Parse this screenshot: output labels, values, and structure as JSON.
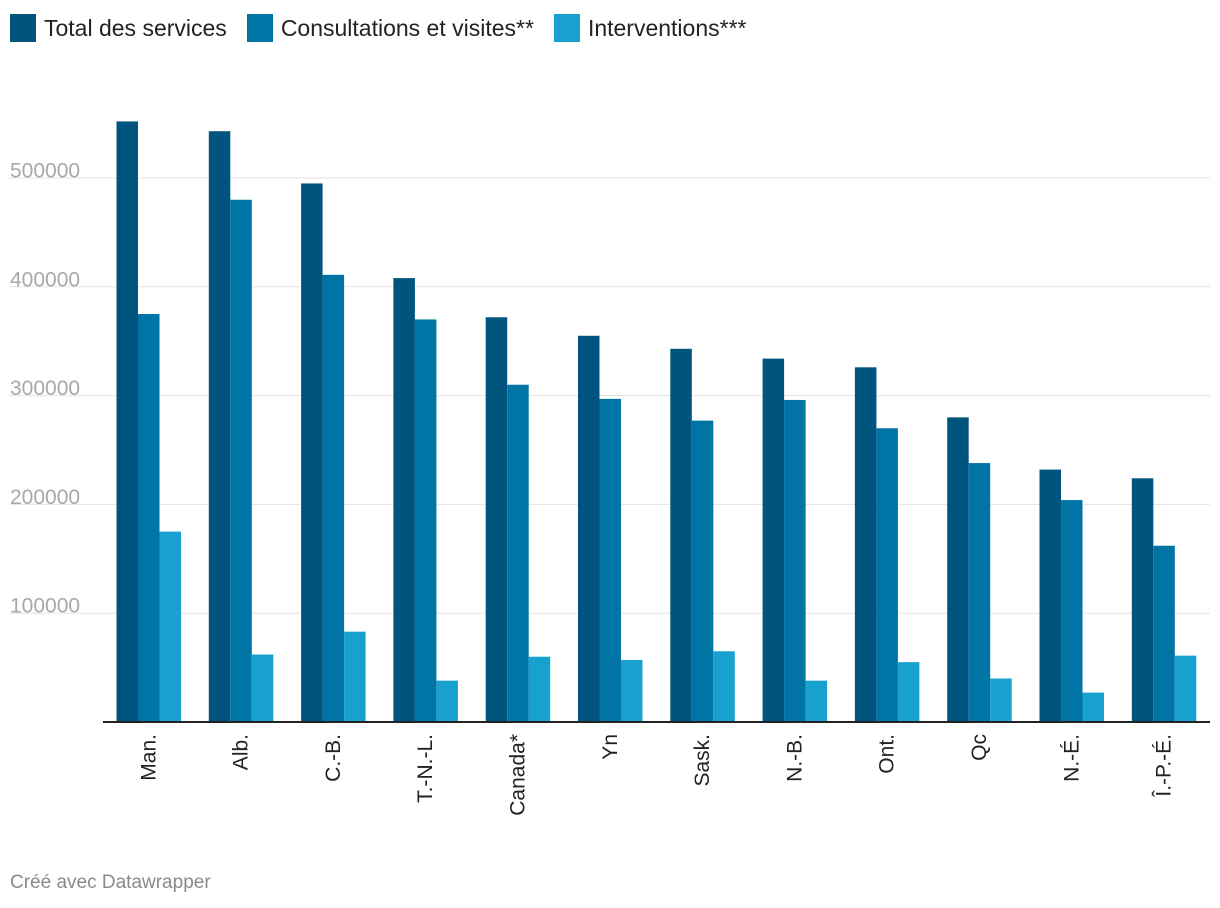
{
  "legend": {
    "items": [
      {
        "label": "Total des services",
        "color": "#00547d"
      },
      {
        "label": "Consultations et visites**",
        "color": "#0075a5"
      },
      {
        "label": "Interventions***",
        "color": "#18a0cf"
      }
    ]
  },
  "footer": {
    "credit": "Créé avec Datawrapper"
  },
  "chart_data": {
    "type": "bar",
    "title": "",
    "xlabel": "",
    "ylabel": "",
    "ylim": [
      0,
      550000
    ],
    "yticks": [
      100000,
      200000,
      300000,
      400000,
      500000
    ],
    "ytick_labels": [
      "100000",
      "200000",
      "300000",
      "400000",
      "500000"
    ],
    "grid": true,
    "legend_position": "top-left",
    "categories": [
      "Man.",
      "Alb.",
      "C.-B.",
      "T.-N.-L.",
      "Canada*",
      "Yn",
      "Sask.",
      "N.-B.",
      "Ont.",
      "Qc",
      "N.-É.",
      "Î.-P.-É."
    ],
    "series": [
      {
        "name": "Total des services",
        "color": "#00547d",
        "values": [
          552000,
          543000,
          495000,
          408000,
          372000,
          355000,
          343000,
          334000,
          326000,
          280000,
          232000,
          224000
        ]
      },
      {
        "name": "Consultations et visites**",
        "color": "#0075a5",
        "values": [
          375000,
          480000,
          411000,
          370000,
          310000,
          297000,
          277000,
          296000,
          270000,
          238000,
          204000,
          162000
        ]
      },
      {
        "name": "Interventions***",
        "color": "#18a0cf",
        "values": [
          175000,
          62000,
          83000,
          38000,
          60000,
          57000,
          65000,
          38000,
          55000,
          40000,
          27000,
          61000
        ]
      }
    ]
  }
}
